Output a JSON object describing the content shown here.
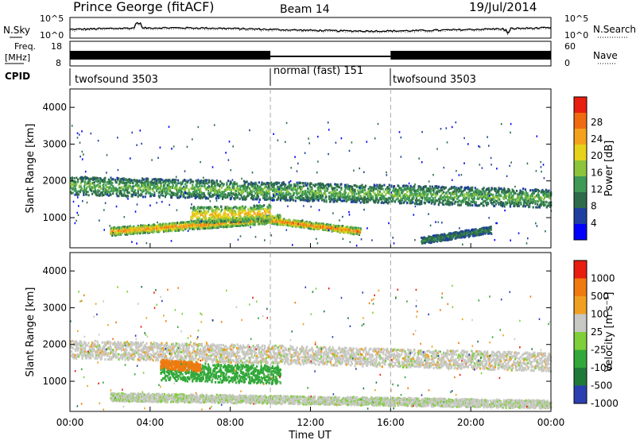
{
  "header": {
    "station": "Prince George (fitACF)",
    "beam": "Beam 14",
    "date": "19/Jul/2014"
  },
  "noise_panel": {
    "left_label": "N.Sky",
    "right_label": "N.Search",
    "left_ticks": [
      "10^5",
      "10^0"
    ],
    "right_ticks": [
      "10^5",
      "10^0"
    ]
  },
  "freq_panel": {
    "left_label_line1": "Freq.",
    "left_label_line2": "[MHz]",
    "left_ticks": [
      "18",
      "8"
    ],
    "right_label": "Nave",
    "right_ticks": [
      "60",
      "0"
    ]
  },
  "cpid": {
    "label": "CPID",
    "segments": [
      {
        "name": "twofsound 3503",
        "start_hour": 0,
        "end_hour": 10
      },
      {
        "name": "normal (fast) 151",
        "start_hour": 10,
        "end_hour": 16
      },
      {
        "name": "twofsound 3503",
        "start_hour": 16,
        "end_hour": 24
      }
    ]
  },
  "chart_data": [
    {
      "type": "heatmap",
      "title": "Power",
      "ylabel": "Slant Range [km]",
      "ylim": [
        180,
        4500
      ],
      "y_ticks": [
        "1000",
        "2000",
        "3000",
        "4000"
      ],
      "x_ticks": [
        "00:00",
        "04:00",
        "08:00",
        "12:00",
        "16:00",
        "20:00",
        "00:00"
      ],
      "xlim_hours": [
        0,
        24
      ],
      "colorbar_label": "Power [dB]",
      "colorbar_ticks": [
        "4",
        "8",
        "12",
        "16",
        "20",
        "24",
        "28"
      ],
      "colorbar_range": [
        0,
        30
      ],
      "colors": [
        "#0000ff",
        "#1f3fa0",
        "#2e6b4a",
        "#3f9a55",
        "#8cc43c",
        "#e6d21a",
        "#f4a21e",
        "#f06a10",
        "#e81e10"
      ],
      "echo_bands": [
        {
          "label": "main F-region band",
          "start_hour": 0.0,
          "end_hour": 24.0,
          "range_start_km": 1900,
          "range_end_km": 1550,
          "width_km": 500,
          "power_db": 14
        },
        {
          "label": "band west",
          "start_hour": 2.0,
          "end_hour": 10.5,
          "range_start_km": 650,
          "range_end_km": 1000,
          "width_km": 220,
          "power_db": 25
        },
        {
          "label": "band east",
          "start_hour": 10.0,
          "end_hour": 14.5,
          "range_start_km": 950,
          "range_end_km": 650,
          "width_km": 180,
          "power_db": 27
        },
        {
          "label": "intense patch",
          "start_hour": 6.0,
          "end_hour": 10.0,
          "range_start_km": 1100,
          "range_end_km": 1150,
          "width_km": 450,
          "power_db": 22
        },
        {
          "label": "evening low band",
          "start_hour": 17.5,
          "end_hour": 21.0,
          "range_start_km": 400,
          "range_end_km": 700,
          "width_km": 180,
          "power_db": 10
        }
      ]
    },
    {
      "type": "heatmap",
      "title": "Velocity",
      "ylabel": "Slant Range [km]",
      "ylim": [
        180,
        4500
      ],
      "y_ticks": [
        "1000",
        "2000",
        "3000",
        "4000"
      ],
      "x_ticks": [
        "00:00",
        "04:00",
        "08:00",
        "12:00",
        "16:00",
        "20:00",
        "00:00"
      ],
      "xlim_hours": [
        0,
        24
      ],
      "xlabel": "Time UT",
      "colorbar_label": "Velocity [m s⁻¹]",
      "colorbar_ticks": [
        "1000",
        "500",
        "100",
        "25",
        "-25",
        "-100",
        "-500",
        "-1000"
      ],
      "colors": [
        "#2c3fb0",
        "#1f7a3a",
        "#33a83a",
        "#7fcf3a",
        "#c8c8c4",
        "#f0a020",
        "#f07a10",
        "#e81e10"
      ],
      "echo_bands": [
        {
          "label": "ground scatter band",
          "start_hour": 0.0,
          "end_hour": 24.0,
          "range_start_km": 1900,
          "range_end_km": 1550,
          "width_km": 500,
          "velocity": 0
        },
        {
          "label": "green convection patch",
          "start_hour": 4.5,
          "end_hour": 10.5,
          "range_start_km": 1300,
          "range_end_km": 1200,
          "width_km": 500,
          "velocity": 150
        },
        {
          "label": "orange edge",
          "start_hour": 4.5,
          "end_hour": 6.5,
          "range_start_km": 1500,
          "range_end_km": 1400,
          "width_km": 250,
          "velocity": -150
        },
        {
          "label": "lower band",
          "start_hour": 2.0,
          "end_hour": 24.0,
          "range_start_km": 600,
          "range_end_km": 400,
          "width_km": 220,
          "velocity": 10
        }
      ]
    }
  ]
}
